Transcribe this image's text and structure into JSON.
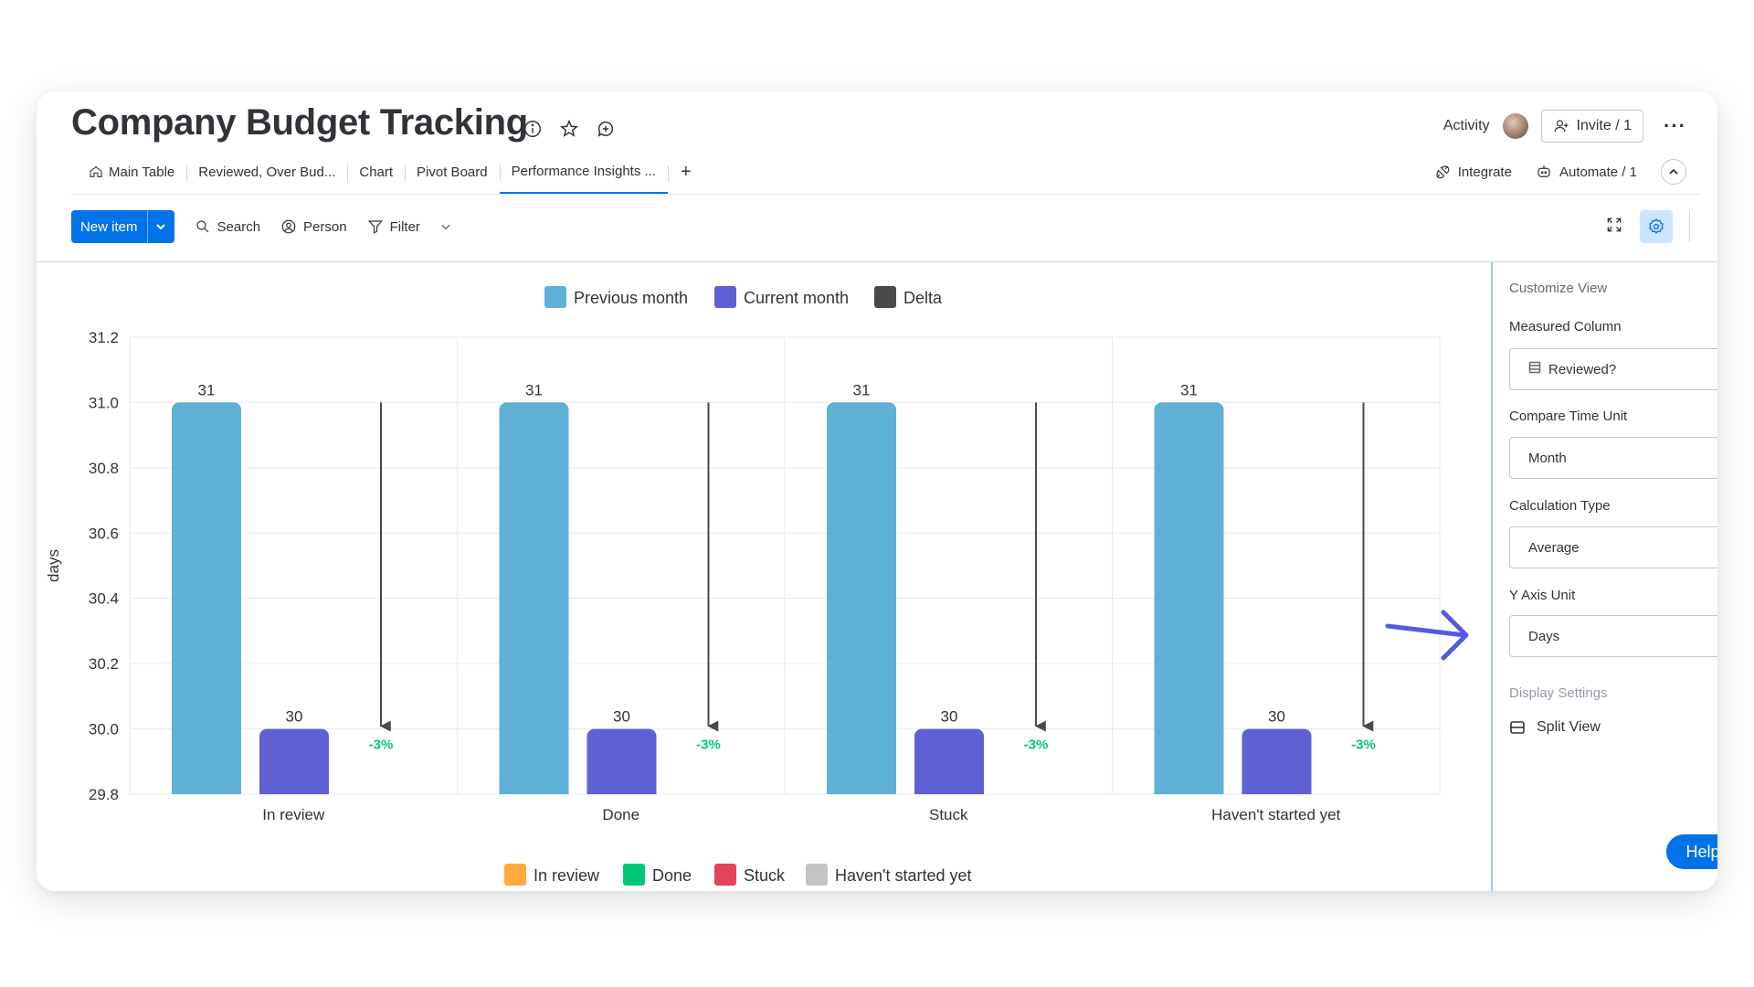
{
  "header": {
    "title": "Company Budget Tracking",
    "activity_label": "Activity",
    "invite_label": "Invite / 1"
  },
  "tabs": [
    {
      "label": "Main Table",
      "icon": "home-icon"
    },
    {
      "label": "Reviewed, Over Bud...",
      "icon": ""
    },
    {
      "label": "Chart",
      "icon": ""
    },
    {
      "label": "Pivot Board",
      "icon": ""
    },
    {
      "label": "Performance Insights ...",
      "icon": "",
      "active": true
    }
  ],
  "tabs_right": {
    "integrate_label": "Integrate",
    "automate_label": "Automate / 1"
  },
  "toolbar": {
    "new_item_label": "New item",
    "search_label": "Search",
    "person_label": "Person",
    "filter_label": "Filter"
  },
  "colors": {
    "previous": "#5fb0d6",
    "current": "#6060d5",
    "delta": "#4a4a4a",
    "delta_text": "#00c875",
    "accent": "#0073ea",
    "annotation": "#5559df"
  },
  "chart_data": {
    "type": "bar",
    "ylabel": "days",
    "ylim": [
      29.8,
      31.2
    ],
    "yticks": [
      "31.2",
      "31.0",
      "30.8",
      "30.6",
      "30.4",
      "30.2",
      "30.0",
      "29.8"
    ],
    "categories": [
      "In review",
      "Done",
      "Stuck",
      "Haven't started yet"
    ],
    "series": [
      {
        "name": "Previous month",
        "values": [
          31,
          31,
          31,
          31
        ]
      },
      {
        "name": "Current month",
        "values": [
          30,
          30,
          30,
          30
        ]
      }
    ],
    "delta": {
      "name": "Delta",
      "labels": [
        "-3%",
        "-3%",
        "-3%",
        "-3%"
      ]
    },
    "legend_top": [
      "Previous month",
      "Current month",
      "Delta"
    ],
    "legend_bottom": [
      {
        "label": "In review",
        "color": "#fdab3d"
      },
      {
        "label": "Done",
        "color": "#00c875"
      },
      {
        "label": "Stuck",
        "color": "#e2445c"
      },
      {
        "label": "Haven't started yet",
        "color": "#c4c4c4"
      }
    ],
    "grid": true
  },
  "side_panel": {
    "title": "Customize View",
    "measured_column_label": "Measured Column",
    "measured_column_value": "Reviewed?",
    "compare_time_unit_label": "Compare Time Unit",
    "compare_time_unit_value": "Month",
    "calculation_type_label": "Calculation Type",
    "calculation_type_value": "Average",
    "y_axis_unit_label": "Y Axis Unit",
    "y_axis_unit_value": "Days",
    "display_settings_label": "Display Settings",
    "split_view_label": "Split View",
    "help_label": "Help"
  }
}
